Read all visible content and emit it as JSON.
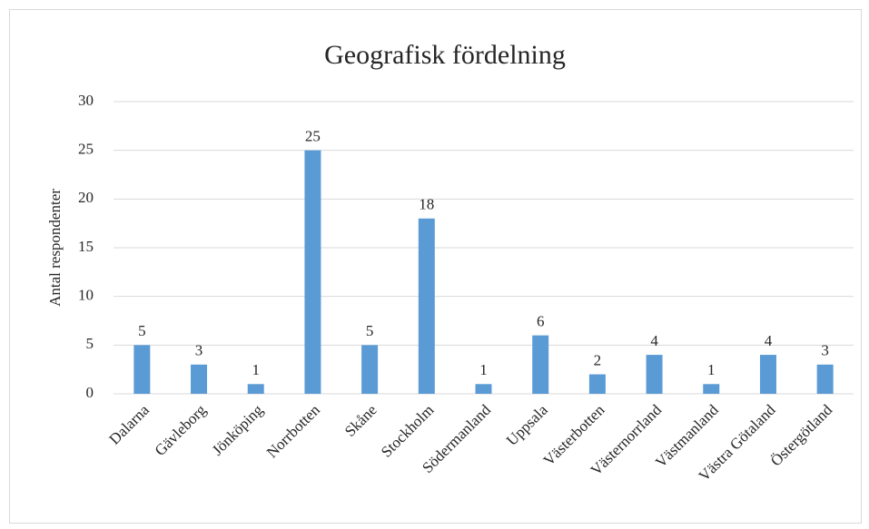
{
  "chart_data": {
    "type": "bar",
    "title": "Geografisk fördelning",
    "y_label": "Antal respondenter",
    "categories": [
      "Dalarna",
      "Gävleborg",
      "Jönköping",
      "Norrbotten",
      "Skåne",
      "Stockholm",
      "Södermanland",
      "Uppsala",
      "Västerbotten",
      "Västernorrland",
      "Västmanland",
      "Västra Götaland",
      "Östergötland"
    ],
    "values": [
      5,
      3,
      1,
      25,
      5,
      18,
      1,
      6,
      2,
      4,
      1,
      4,
      3
    ],
    "color": "#5b9bd5",
    "ylim": [
      0,
      30
    ],
    "yticks": [
      0,
      5,
      10,
      15,
      20,
      25,
      30
    ],
    "grid": true
  }
}
